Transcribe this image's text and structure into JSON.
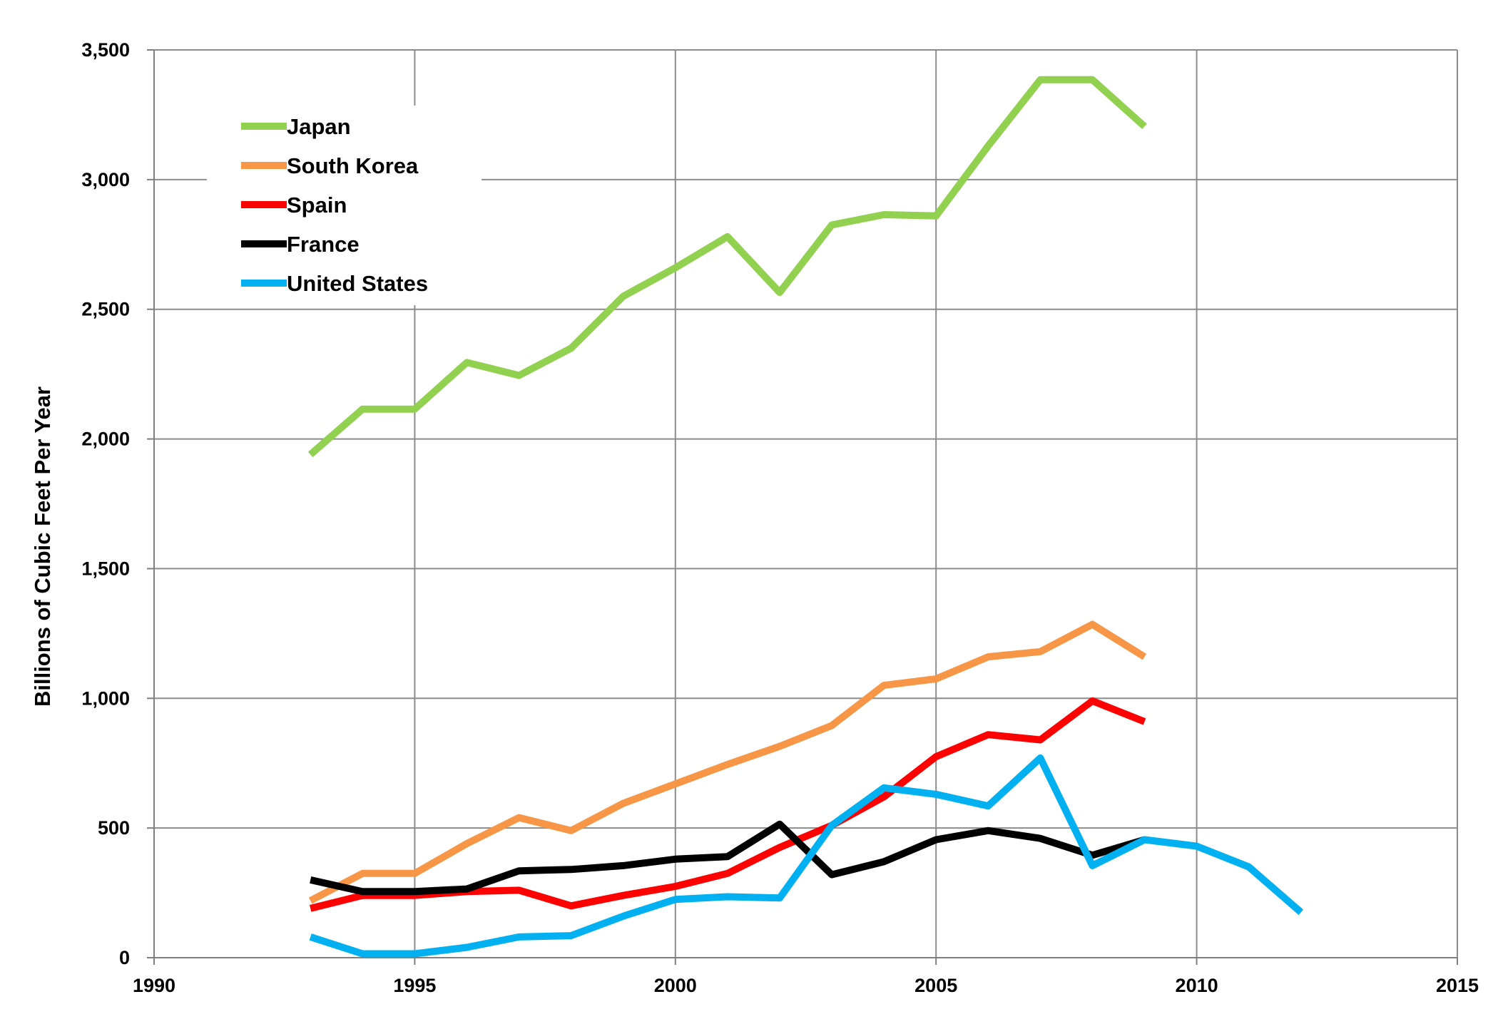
{
  "chart_data": {
    "type": "line",
    "title": "",
    "xlabel": "",
    "ylabel": "Billions of Cubic Feet Per Year",
    "xlim": [
      1990,
      2015
    ],
    "ylim": [
      0,
      3500
    ],
    "x_ticks": [
      1990,
      1995,
      2000,
      2005,
      2010,
      2015
    ],
    "x_tick_labels": [
      "1990",
      "1995",
      "2000",
      "2005",
      "2010",
      "2015"
    ],
    "y_ticks": [
      0,
      500,
      1000,
      1500,
      2000,
      2500,
      3000,
      3500
    ],
    "y_tick_labels": [
      "0",
      "500",
      "1,000",
      "1,500",
      "2,000",
      "2,500",
      "3,000",
      "3,500"
    ],
    "grid": true,
    "legend_position": "top-left",
    "series": [
      {
        "name": "Japan",
        "color": "#92d050",
        "x": [
          1993,
          1994,
          1995,
          1996,
          1997,
          1998,
          1999,
          2000,
          2001,
          2002,
          2003,
          2004,
          2005,
          2006,
          2007,
          2008,
          2009
        ],
        "values": [
          1940,
          2115,
          2115,
          2295,
          2245,
          2350,
          2550,
          2660,
          2780,
          2565,
          2825,
          2865,
          2860,
          3130,
          3385,
          3385,
          3205
        ]
      },
      {
        "name": "South Korea",
        "color": "#f79646",
        "x": [
          1993,
          1994,
          1995,
          1996,
          1997,
          1998,
          1999,
          2000,
          2001,
          2002,
          2003,
          2004,
          2005,
          2006,
          2007,
          2008,
          2009
        ],
        "values": [
          220,
          325,
          325,
          440,
          540,
          490,
          595,
          670,
          745,
          815,
          895,
          1050,
          1075,
          1160,
          1180,
          1285,
          1160
        ]
      },
      {
        "name": "Spain",
        "color": "#ff0000",
        "x": [
          1993,
          1994,
          1995,
          1996,
          1997,
          1998,
          1999,
          2000,
          2001,
          2002,
          2003,
          2004,
          2005,
          2006,
          2007,
          2008,
          2009
        ],
        "values": [
          190,
          240,
          240,
          255,
          260,
          200,
          240,
          275,
          325,
          425,
          510,
          620,
          775,
          860,
          840,
          990,
          910
        ]
      },
      {
        "name": "France",
        "color": "#000000",
        "x": [
          1993,
          1994,
          1995,
          1996,
          1997,
          1998,
          1999,
          2000,
          2001,
          2002,
          2003,
          2004,
          2005,
          2006,
          2007,
          2008,
          2009
        ],
        "values": [
          300,
          255,
          255,
          265,
          335,
          340,
          355,
          380,
          390,
          515,
          320,
          370,
          455,
          490,
          460,
          395,
          455
        ]
      },
      {
        "name": "United States",
        "color": "#00b0f0",
        "x": [
          1993,
          1994,
          1995,
          1996,
          1997,
          1998,
          1999,
          2000,
          2001,
          2002,
          2003,
          2004,
          2005,
          2006,
          2007,
          2008,
          2009,
          2010,
          2011,
          2012
        ],
        "values": [
          80,
          15,
          15,
          40,
          80,
          85,
          160,
          225,
          235,
          230,
          510,
          655,
          630,
          585,
          770,
          355,
          455,
          430,
          350,
          175
        ]
      }
    ]
  }
}
